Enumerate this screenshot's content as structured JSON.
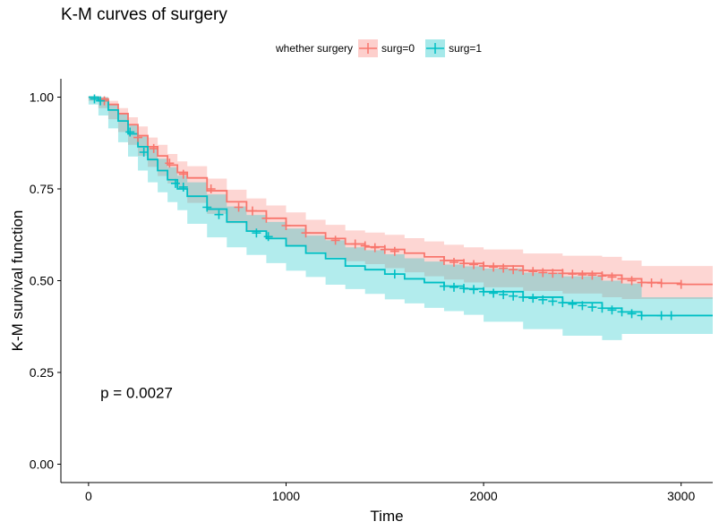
{
  "chart_data": {
    "type": "line",
    "title": "K-M curves of surgery",
    "xlabel": "Time",
    "ylabel": "K-M survival function",
    "xlim": [
      -140,
      3160
    ],
    "ylim": [
      -0.05,
      1.05
    ],
    "xticks": [
      0,
      1000,
      2000,
      3000
    ],
    "yticks": [
      0.0,
      0.25,
      0.5,
      0.75,
      1.0
    ],
    "xtick_labels": [
      "0",
      "1000",
      "2000",
      "3000"
    ],
    "ytick_labels": [
      "0.00",
      "0.25",
      "0.50",
      "0.75",
      "1.00"
    ],
    "legend_title": "whether surgery",
    "legend_position": "top",
    "annotation": "p = 0.0027",
    "grid": false,
    "series": [
      {
        "name": "surg=0",
        "color": "#F8766D",
        "fill": "#F8766D",
        "x": [
          0,
          50,
          100,
          150,
          200,
          250,
          300,
          350,
          400,
          450,
          500,
          600,
          700,
          800,
          900,
          1000,
          1100,
          1200,
          1300,
          1400,
          1500,
          1600,
          1700,
          1800,
          1900,
          2000,
          2200,
          2400,
          2600,
          2700,
          2800,
          2900,
          3000,
          3160
        ],
        "y": [
          1.0,
          0.995,
          0.98,
          0.955,
          0.925,
          0.895,
          0.865,
          0.84,
          0.815,
          0.795,
          0.78,
          0.745,
          0.715,
          0.69,
          0.67,
          0.65,
          0.63,
          0.615,
          0.6,
          0.592,
          0.585,
          0.575,
          0.565,
          0.555,
          0.547,
          0.54,
          0.528,
          0.52,
          0.515,
          0.505,
          0.495,
          0.493,
          0.49,
          0.49
        ],
        "lower": [
          1.0,
          0.99,
          0.97,
          0.94,
          0.905,
          0.87,
          0.84,
          0.81,
          0.785,
          0.765,
          0.748,
          0.712,
          0.682,
          0.656,
          0.635,
          0.614,
          0.594,
          0.578,
          0.563,
          0.553,
          0.545,
          0.534,
          0.523,
          0.512,
          0.503,
          0.495,
          0.482,
          0.472,
          0.465,
          0.455,
          0.45,
          0.45,
          0.45,
          0.45
        ],
        "upper": [
          1.0,
          1.0,
          0.99,
          0.97,
          0.945,
          0.92,
          0.89,
          0.87,
          0.845,
          0.825,
          0.812,
          0.778,
          0.748,
          0.724,
          0.705,
          0.686,
          0.666,
          0.652,
          0.637,
          0.631,
          0.625,
          0.616,
          0.607,
          0.598,
          0.591,
          0.585,
          0.574,
          0.568,
          0.565,
          0.555,
          0.54,
          0.54,
          0.54,
          0.54
        ],
        "censor_x": [
          80,
          250,
          330,
          410,
          480,
          620,
          760,
          830,
          900,
          1000,
          1100,
          1250,
          1350,
          1400,
          1450,
          1500,
          1550,
          1800,
          1850,
          1900,
          1950,
          2000,
          2050,
          2100,
          2150,
          2200,
          2250,
          2300,
          2350,
          2400,
          2450,
          2500,
          2550,
          2600,
          2650,
          2700,
          2750,
          2800,
          2850,
          2900,
          3000
        ],
        "censor_y": [
          0.99,
          0.89,
          0.86,
          0.82,
          0.79,
          0.75,
          0.7,
          0.69,
          0.67,
          0.65,
          0.63,
          0.61,
          0.6,
          0.595,
          0.59,
          0.585,
          0.58,
          0.555,
          0.55,
          0.547,
          0.544,
          0.54,
          0.537,
          0.534,
          0.53,
          0.528,
          0.525,
          0.522,
          0.52,
          0.52,
          0.518,
          0.516,
          0.515,
          0.513,
          0.51,
          0.505,
          0.5,
          0.495,
          0.494,
          0.493,
          0.49
        ]
      },
      {
        "name": "surg=1",
        "color": "#00BFC4",
        "fill": "#00BFC4",
        "x": [
          0,
          50,
          100,
          150,
          200,
          250,
          300,
          350,
          400,
          450,
          500,
          600,
          700,
          800,
          900,
          1000,
          1100,
          1200,
          1300,
          1400,
          1500,
          1600,
          1700,
          1800,
          1900,
          2000,
          2200,
          2400,
          2600,
          2700,
          2800,
          2900,
          3000,
          3160
        ],
        "y": [
          1.0,
          0.99,
          0.965,
          0.935,
          0.9,
          0.865,
          0.83,
          0.8,
          0.775,
          0.75,
          0.73,
          0.695,
          0.66,
          0.635,
          0.615,
          0.595,
          0.575,
          0.56,
          0.54,
          0.53,
          0.518,
          0.505,
          0.495,
          0.485,
          0.478,
          0.47,
          0.455,
          0.44,
          0.425,
          0.415,
          0.405,
          0.405,
          0.405,
          0.405
        ],
        "lower": [
          1.0,
          0.98,
          0.95,
          0.915,
          0.877,
          0.838,
          0.8,
          0.768,
          0.741,
          0.714,
          0.692,
          0.655,
          0.618,
          0.591,
          0.57,
          0.548,
          0.527,
          0.51,
          0.489,
          0.477,
          0.464,
          0.449,
          0.438,
          0.426,
          0.417,
          0.407,
          0.388,
          0.368,
          0.35,
          0.338,
          0.355,
          0.355,
          0.355,
          0.355
        ],
        "upper": [
          1.0,
          1.0,
          0.98,
          0.955,
          0.923,
          0.892,
          0.86,
          0.832,
          0.809,
          0.786,
          0.768,
          0.735,
          0.702,
          0.679,
          0.66,
          0.642,
          0.623,
          0.61,
          0.591,
          0.583,
          0.572,
          0.561,
          0.552,
          0.544,
          0.539,
          0.533,
          0.522,
          0.512,
          0.5,
          0.492,
          0.455,
          0.455,
          0.455,
          0.455
        ],
        "censor_x": [
          30,
          60,
          210,
          280,
          440,
          480,
          600,
          660,
          850,
          910,
          1550,
          1800,
          1850,
          1900,
          1950,
          2000,
          2050,
          2100,
          2150,
          2200,
          2250,
          2300,
          2350,
          2400,
          2450,
          2500,
          2550,
          2600,
          2650,
          2700,
          2750,
          2800,
          2900,
          2950
        ],
        "censor_y": [
          0.995,
          0.99,
          0.905,
          0.85,
          0.765,
          0.755,
          0.7,
          0.68,
          0.63,
          0.62,
          0.518,
          0.485,
          0.482,
          0.479,
          0.476,
          0.47,
          0.466,
          0.462,
          0.458,
          0.455,
          0.452,
          0.448,
          0.444,
          0.44,
          0.436,
          0.432,
          0.428,
          0.425,
          0.42,
          0.415,
          0.41,
          0.405,
          0.405,
          0.405
        ]
      }
    ]
  }
}
